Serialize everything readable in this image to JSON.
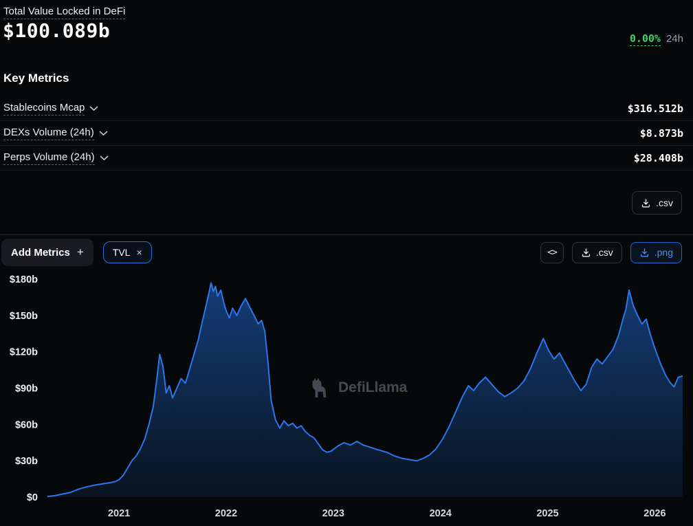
{
  "header": {
    "title": "Total Value Locked in DeFi",
    "value": "$100.089b",
    "change": "0.00%",
    "change_period": "24h"
  },
  "key_metrics": {
    "heading": "Key Metrics",
    "rows": [
      {
        "label": "Stablecoins Mcap",
        "value": "$316.512b"
      },
      {
        "label": "DEXs Volume (24h)",
        "value": "$8.873b"
      },
      {
        "label": "Perps Volume (24h)",
        "value": "$28.408b"
      }
    ],
    "csv_button": ".csv"
  },
  "toolbar": {
    "add_metrics_label": "Add Metrics",
    "plus": "+",
    "tvl_pill_label": "TVL",
    "close_glyph": "×",
    "embed_glyph": "<>",
    "csv_label": ".csv",
    "png_label": ".png"
  },
  "watermark": "DefiLlama",
  "colors": {
    "accent_blue": "#2172e5",
    "positive_green": "#3fcf66",
    "background": "#07080a"
  },
  "chart_data": {
    "type": "area",
    "title": "Total Value Locked in DeFi (TVL)",
    "series_name": "TVL",
    "unit": "$b",
    "xlim": [
      2020.3,
      2026.28
    ],
    "ylim": [
      0,
      180
    ],
    "grid": false,
    "legend": "none",
    "yticks": [
      {
        "v": 0,
        "label": "$0"
      },
      {
        "v": 30,
        "label": "$30b"
      },
      {
        "v": 60,
        "label": "$60b"
      },
      {
        "v": 90,
        "label": "$90b"
      },
      {
        "v": 120,
        "label": "$120b"
      },
      {
        "v": 150,
        "label": "$150b"
      },
      {
        "v": 180,
        "label": "$180b"
      }
    ],
    "xticks": [
      {
        "v": 2021,
        "label": "2021"
      },
      {
        "v": 2022,
        "label": "2022"
      },
      {
        "v": 2023,
        "label": "2023"
      },
      {
        "v": 2024,
        "label": "2024"
      },
      {
        "v": 2025,
        "label": "2025"
      },
      {
        "v": 2026,
        "label": "2026"
      }
    ],
    "x": [
      2020.33,
      2020.4,
      2020.47,
      2020.55,
      2020.62,
      2020.7,
      2020.78,
      2020.85,
      2020.92,
      2020.97,
      2021.0,
      2021.04,
      2021.08,
      2021.12,
      2021.16,
      2021.2,
      2021.24,
      2021.28,
      2021.32,
      2021.35,
      2021.38,
      2021.41,
      2021.44,
      2021.47,
      2021.5,
      2021.54,
      2021.58,
      2021.62,
      2021.66,
      2021.7,
      2021.74,
      2021.78,
      2021.81,
      2021.84,
      2021.86,
      2021.88,
      2021.9,
      2021.92,
      2021.95,
      2021.98,
      2022.0,
      2022.03,
      2022.06,
      2022.1,
      2022.14,
      2022.18,
      2022.22,
      2022.26,
      2022.3,
      2022.33,
      2022.36,
      2022.39,
      2022.42,
      2022.46,
      2022.5,
      2022.54,
      2022.58,
      2022.62,
      2022.66,
      2022.7,
      2022.74,
      2022.78,
      2022.82,
      2022.86,
      2022.9,
      2022.94,
      2022.98,
      2023.04,
      2023.1,
      2023.16,
      2023.22,
      2023.28,
      2023.35,
      2023.42,
      2023.5,
      2023.57,
      2023.64,
      2023.71,
      2023.78,
      2023.84,
      2023.9,
      2023.96,
      2024.02,
      2024.08,
      2024.14,
      2024.2,
      2024.26,
      2024.31,
      2024.36,
      2024.42,
      2024.48,
      2024.54,
      2024.6,
      2024.66,
      2024.72,
      2024.78,
      2024.84,
      2024.9,
      2024.96,
      2025.01,
      2025.06,
      2025.11,
      2025.16,
      2025.21,
      2025.26,
      2025.31,
      2025.36,
      2025.41,
      2025.46,
      2025.51,
      2025.56,
      2025.61,
      2025.66,
      2025.7,
      2025.73,
      2025.76,
      2025.8,
      2025.84,
      2025.88,
      2025.92,
      2025.96,
      2026.0,
      2026.05,
      2026.1,
      2026.14,
      2026.18,
      2026.22,
      2026.26
    ],
    "values": [
      0.5,
      1.2,
      2.5,
      4,
      6.5,
      8.5,
      10,
      11,
      12,
      13,
      14.5,
      18,
      24,
      30,
      34,
      40,
      48,
      60,
      75,
      95,
      118,
      108,
      86,
      92,
      82,
      90,
      98,
      94,
      106,
      118,
      130,
      146,
      157,
      169,
      177,
      170,
      174,
      166,
      171,
      160,
      154,
      148,
      156,
      150,
      158,
      164,
      157,
      150,
      143,
      146,
      137,
      112,
      80,
      64,
      57,
      63,
      59,
      61,
      57,
      59,
      54,
      51,
      49,
      44,
      39,
      37,
      38,
      42,
      45,
      43,
      46,
      43,
      41,
      39,
      37,
      34,
      32,
      31,
      30,
      32,
      35,
      40,
      48,
      58,
      70,
      82,
      92,
      88,
      94,
      99,
      93,
      87,
      83,
      86,
      90,
      96,
      106,
      119,
      131,
      121,
      114,
      119,
      111,
      103,
      95,
      88,
      93,
      107,
      114,
      110,
      116,
      122,
      133,
      146,
      155,
      171,
      158,
      150,
      143,
      147,
      134,
      123,
      111,
      101,
      95,
      91,
      99,
      100
    ]
  }
}
